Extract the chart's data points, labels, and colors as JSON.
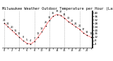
{
  "title": "Milwaukee Weather Outdoor Temperature per Hour (Last 24 Hours)",
  "hours": [
    0,
    1,
    2,
    3,
    4,
    5,
    6,
    7,
    8,
    9,
    10,
    11,
    12,
    13,
    14,
    15,
    16,
    17,
    18,
    19,
    20,
    21,
    22,
    23
  ],
  "temps": [
    28,
    24,
    20,
    16,
    12,
    8,
    5,
    4,
    7,
    12,
    18,
    25,
    31,
    36,
    38,
    37,
    34,
    30,
    27,
    24,
    21,
    17,
    14,
    12
  ],
  "line_color": "#ff0000",
  "marker_color": "#000000",
  "bg_color": "#ffffff",
  "grid_color": "#888888",
  "ylim": [
    0,
    42
  ],
  "ytick_vals": [
    4,
    8,
    12,
    16,
    20,
    24,
    28,
    32,
    36,
    40
  ],
  "title_fontsize": 3.8,
  "tick_fontsize": 3.0,
  "label_fontsize": 2.5
}
